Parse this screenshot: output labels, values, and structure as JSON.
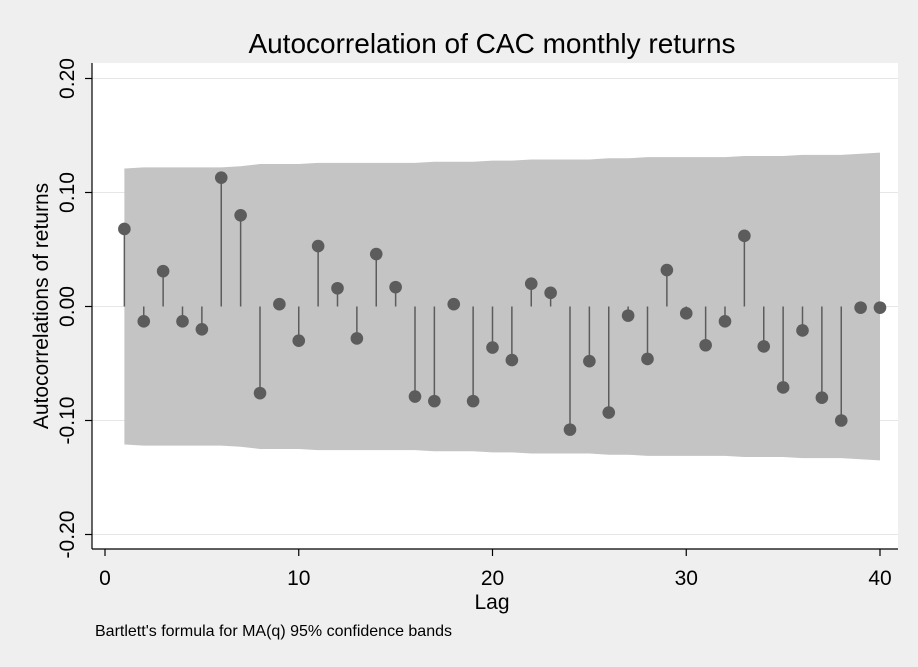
{
  "chart_data": {
    "type": "scatter",
    "subtype": "autocorrelogram",
    "title": "Autocorrelation of CAC monthly returns",
    "xlabel": "Lag",
    "ylabel": "Autocorrelations of returns",
    "note": "Bartlett's formula for MA(q) 95% confidence bands",
    "xlim": [
      0,
      40
    ],
    "ylim": [
      -0.2,
      0.2
    ],
    "xticks": [
      0,
      10,
      20,
      30,
      40
    ],
    "xtick_labels": [
      "0",
      "10",
      "20",
      "30",
      "40"
    ],
    "yticks": [
      -0.2,
      -0.1,
      0.0,
      0.1,
      0.2
    ],
    "ytick_labels": [
      "-0.20",
      "-0.10",
      "0.00",
      "0.10",
      "0.20"
    ],
    "grid": true,
    "lags": [
      1,
      2,
      3,
      4,
      5,
      6,
      7,
      8,
      9,
      10,
      11,
      12,
      13,
      14,
      15,
      16,
      17,
      18,
      19,
      20,
      21,
      22,
      23,
      24,
      25,
      26,
      27,
      28,
      29,
      30,
      31,
      32,
      33,
      34,
      35,
      36,
      37,
      38,
      39,
      40
    ],
    "values": [
      0.068,
      -0.013,
      0.031,
      -0.013,
      -0.02,
      0.113,
      0.08,
      -0.076,
      0.002,
      -0.03,
      0.053,
      0.016,
      -0.028,
      0.046,
      0.017,
      -0.079,
      -0.083,
      0.002,
      -0.083,
      -0.036,
      -0.047,
      0.02,
      0.012,
      -0.108,
      -0.048,
      -0.093,
      -0.008,
      -0.046,
      0.032,
      -0.006,
      -0.034,
      -0.013,
      0.062,
      -0.035,
      -0.071,
      -0.021,
      -0.08,
      -0.1,
      -0.001,
      -0.001
    ],
    "confidence_band": {
      "label": "95% confidence bands",
      "lags": [
        1,
        2,
        3,
        4,
        5,
        6,
        7,
        8,
        9,
        10,
        11,
        12,
        13,
        14,
        15,
        16,
        17,
        18,
        19,
        20,
        21,
        22,
        23,
        24,
        25,
        26,
        27,
        28,
        29,
        30,
        31,
        32,
        33,
        34,
        35,
        36,
        37,
        38,
        39,
        40
      ],
      "upper": [
        0.121,
        0.122,
        0.122,
        0.122,
        0.122,
        0.122,
        0.123,
        0.125,
        0.125,
        0.125,
        0.126,
        0.126,
        0.126,
        0.126,
        0.126,
        0.126,
        0.127,
        0.127,
        0.127,
        0.128,
        0.128,
        0.129,
        0.129,
        0.129,
        0.129,
        0.13,
        0.13,
        0.131,
        0.131,
        0.131,
        0.131,
        0.131,
        0.132,
        0.132,
        0.132,
        0.133,
        0.133,
        0.133,
        0.134,
        0.135
      ],
      "lower": [
        -0.121,
        -0.122,
        -0.122,
        -0.122,
        -0.122,
        -0.122,
        -0.123,
        -0.125,
        -0.125,
        -0.125,
        -0.126,
        -0.126,
        -0.126,
        -0.126,
        -0.126,
        -0.126,
        -0.127,
        -0.127,
        -0.127,
        -0.128,
        -0.128,
        -0.129,
        -0.129,
        -0.129,
        -0.129,
        -0.13,
        -0.13,
        -0.131,
        -0.131,
        -0.131,
        -0.131,
        -0.131,
        -0.132,
        -0.132,
        -0.132,
        -0.133,
        -0.133,
        -0.133,
        -0.134,
        -0.135
      ]
    },
    "colors": {
      "background": "#efefef",
      "plot_background": "#ffffff",
      "band": "#c4c4c4",
      "marker": "#5c5c5c",
      "spike": "#5c5c5c",
      "grid": "#e6e6e6",
      "axis": "#000000"
    }
  }
}
